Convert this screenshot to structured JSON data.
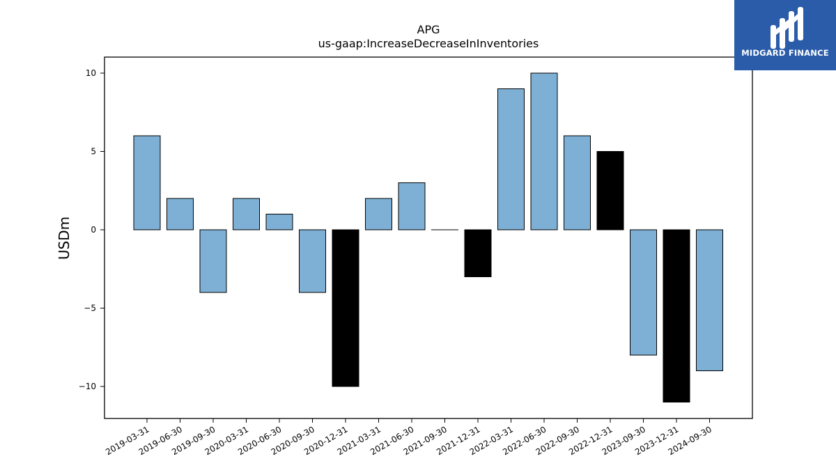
{
  "logo": {
    "text": "MIDGARD FINANCE",
    "bg_color": "#2a5caa"
  },
  "chart_data": {
    "type": "bar",
    "title": "APG",
    "subtitle": "us-gaap:IncreaseDecreaseInInventories",
    "xlabel": "",
    "ylabel": "USDm",
    "ylim": [
      -12,
      11
    ],
    "yticks": [
      10,
      5,
      0,
      -5,
      -10
    ],
    "ytick_labels": [
      "10",
      "5",
      "0",
      "−5",
      "−10"
    ],
    "grid": false,
    "categories": [
      "2019-03-31",
      "2019-06-30",
      "2019-09-30",
      "2020-03-31",
      "2020-06-30",
      "2020-09-30",
      "2020-12-31",
      "2021-03-31",
      "2021-06-30",
      "2021-09-30",
      "2021-12-31",
      "2022-03-31",
      "2022-06-30",
      "2022-09-30",
      "2022-12-31",
      "2023-09-30",
      "2023-12-31",
      "2024-09-30"
    ],
    "values": [
      6,
      2,
      -4,
      2,
      1,
      -4,
      -10,
      2,
      3,
      0,
      -3,
      9,
      10,
      6,
      5,
      -8,
      -11,
      -9
    ],
    "highlight": [
      false,
      false,
      false,
      false,
      false,
      false,
      true,
      false,
      false,
      false,
      true,
      false,
      false,
      false,
      true,
      false,
      true,
      false
    ],
    "colors": {
      "bar": "#7eb0d5",
      "highlight": "#000000",
      "edge": "#000000"
    }
  }
}
